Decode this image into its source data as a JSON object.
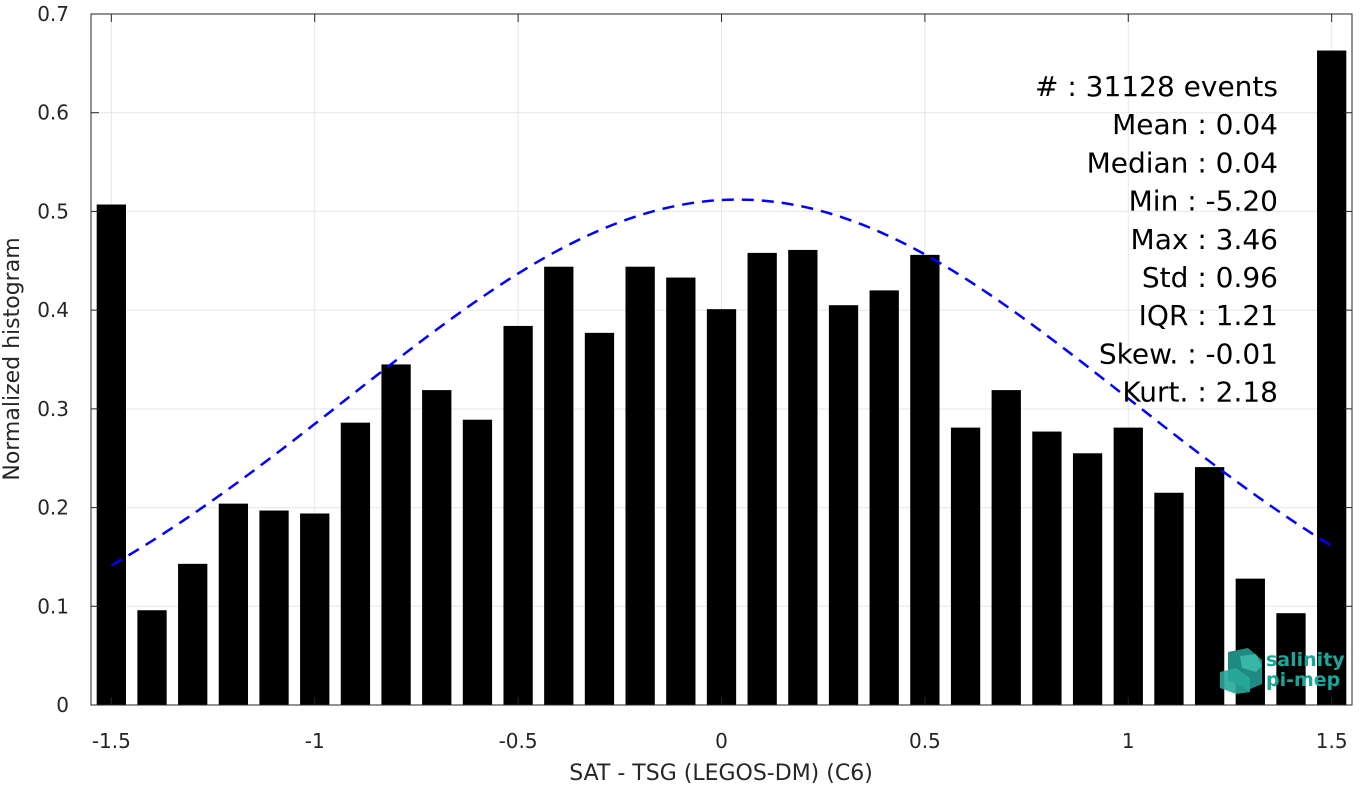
{
  "chart_data": {
    "type": "bar",
    "xlabel": "SAT - TSG (LEGOS-DM) (C6)",
    "ylabel": "Normalized histogram",
    "xlim": [
      -1.55,
      1.55
    ],
    "ylim": [
      0,
      0.7
    ],
    "x_ticks": [
      "-1.5",
      "-1",
      "-0.5",
      "0",
      "0.5",
      "1",
      "1.5"
    ],
    "x_tick_values": [
      -1.5,
      -1,
      -0.5,
      0,
      0.5,
      1,
      1.5
    ],
    "y_ticks": [
      "0",
      "0.1",
      "0.2",
      "0.3",
      "0.4",
      "0.5",
      "0.6",
      "0.7"
    ],
    "y_tick_values": [
      0,
      0.1,
      0.2,
      0.3,
      0.4,
      0.5,
      0.6,
      0.7
    ],
    "grid": true,
    "bar_color": "#000000",
    "series": [
      {
        "x": [
          -1.5,
          -1.4,
          -1.3,
          -1.2,
          -1.1,
          -1.0,
          -0.9,
          -0.8,
          -0.7,
          -0.6,
          -0.5,
          -0.4,
          -0.3,
          -0.2,
          -0.1,
          0.0,
          0.1,
          0.2,
          0.3,
          0.4,
          0.5,
          0.6,
          0.7,
          0.8,
          0.9,
          1.0,
          1.1,
          1.2,
          1.3,
          1.4,
          1.5
        ],
        "values": [
          0.507,
          0.096,
          0.143,
          0.204,
          0.197,
          0.194,
          0.286,
          0.345,
          0.319,
          0.289,
          0.384,
          0.444,
          0.377,
          0.444,
          0.433,
          0.401,
          0.458,
          0.461,
          0.405,
          0.42,
          0.456,
          0.281,
          0.319,
          0.277,
          0.255,
          0.281,
          0.215,
          0.241,
          0.128,
          0.093,
          0.663
        ]
      }
    ],
    "fit_curve": {
      "style": "dashed",
      "color": "#0000ff",
      "mean": 0.04,
      "std": 0.96,
      "peak": 0.512,
      "x_range": [
        -1.5,
        1.5
      ]
    },
    "stats": [
      "#  : 31128 events",
      "Mean : 0.04",
      "Median : 0.04",
      "Min : -5.20",
      "Max : 3.46",
      "Std : 0.96",
      "IQR : 1.21",
      "Skew. : -0.01",
      "Kurt. : 2.18"
    ]
  },
  "logo": {
    "line1": "salinity",
    "line2": "pi-mep",
    "color": "#1aa69a"
  }
}
